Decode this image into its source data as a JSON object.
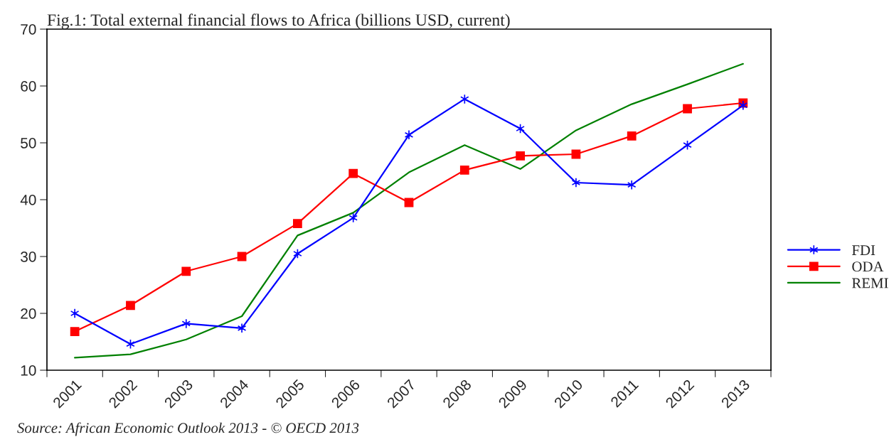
{
  "chart_data": {
    "type": "line",
    "title": "Fig.1: Total external financial flows to Africa (billions USD, current)",
    "categories": [
      "2001",
      "2002",
      "2003",
      "2004",
      "2005",
      "2006",
      "2007",
      "2008",
      "2009",
      "2010",
      "2011",
      "2012",
      "2013"
    ],
    "series": [
      {
        "name": "FDI",
        "color": "#0000ff",
        "marker": "cross",
        "values": [
          20.0,
          14.6,
          18.2,
          17.4,
          30.5,
          36.8,
          51.4,
          57.7,
          52.5,
          43.0,
          42.6,
          49.6,
          56.6
        ]
      },
      {
        "name": "ODA",
        "color": "#ff0000",
        "marker": "square",
        "values": [
          16.8,
          21.4,
          27.4,
          30.0,
          35.8,
          44.6,
          39.5,
          45.2,
          47.7,
          48.0,
          51.2,
          56.0,
          57.0
        ]
      },
      {
        "name": "REMI",
        "color": "#008000",
        "marker": "none",
        "values": [
          12.2,
          12.8,
          15.4,
          19.5,
          33.7,
          37.7,
          44.8,
          49.6,
          45.4,
          52.2,
          56.8,
          60.3,
          63.9
        ]
      }
    ],
    "ylim": [
      10,
      70
    ],
    "yticks": [
      10,
      20,
      30,
      40,
      50,
      60,
      70
    ],
    "grid": false,
    "legend": "right",
    "line_style": "solid",
    "annotations": [
      "Source: African Economic Outlook 2013 - © OECD 2013"
    ]
  }
}
